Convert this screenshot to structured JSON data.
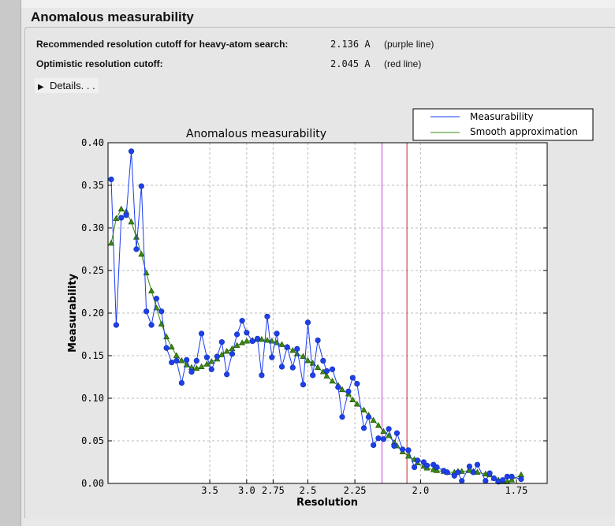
{
  "section_title": "Anomalous measurability",
  "rows": [
    {
      "label": "Recommended resolution cutoff for heavy-atom search:",
      "value": "2.136 A",
      "note": "(purple line)"
    },
    {
      "label": "Optimistic resolution cutoff:",
      "value": "2.045 A",
      "note": "(red line)"
    }
  ],
  "details_label": "Details. . .",
  "colors": {
    "measurability": "#1a3cf0",
    "smooth": "#3a8a10",
    "purple_line": "#d040d0",
    "red_line": "#c03020"
  },
  "chart_data": {
    "type": "line",
    "title": "Anomalous measurability",
    "xlabel": "Resolution",
    "ylabel": "Measurability",
    "x_scale": "1/d^2",
    "x_ticks": [
      "3.5",
      "3.0",
      "2.75",
      "2.5",
      "2.25",
      "2.0",
      "1.75"
    ],
    "y_ticks": [
      "0.00",
      "0.05",
      "0.10",
      "0.15",
      "0.20",
      "0.25",
      "0.30",
      "0.35",
      "0.40"
    ],
    "ylim": [
      0,
      0.4
    ],
    "xlim_resolution": [
      null,
      1.69
    ],
    "grid": true,
    "legend_placement": "top-right",
    "vlines": [
      {
        "x": 2.136,
        "color": "purple"
      },
      {
        "x": 2.045,
        "color": "red"
      }
    ],
    "x": [
      18.57,
      12.02,
      9.56,
      8.18,
      7.26,
      6.59,
      6.08,
      5.68,
      5.34,
      5.06,
      4.82,
      4.61,
      4.42,
      4.26,
      4.11,
      3.98,
      3.86,
      3.75,
      3.65,
      3.55,
      3.47,
      3.38,
      3.31,
      3.24,
      3.17,
      3.11,
      3.05,
      3.0,
      2.94,
      2.89,
      2.85,
      2.8,
      2.76,
      2.72,
      2.68,
      2.64,
      2.6,
      2.57,
      2.53,
      2.5,
      2.47,
      2.44,
      2.41,
      2.39,
      2.36,
      2.33,
      2.31,
      2.28,
      2.26,
      2.24,
      2.21,
      2.19,
      2.17,
      2.15,
      2.13,
      2.11,
      2.09,
      2.08,
      2.06,
      2.04,
      2.02,
      2.01,
      1.99,
      1.98,
      1.96,
      1.95,
      1.93,
      1.92,
      1.9,
      1.89,
      1.88,
      1.86,
      1.85,
      1.84,
      1.82,
      1.81,
      1.8,
      1.79,
      1.78,
      1.77,
      1.76,
      1.74
    ],
    "series": [
      {
        "name": "Measurability",
        "marker": "circle",
        "values": [
          0.357,
          0.186,
          0.312,
          0.315,
          0.39,
          0.275,
          0.349,
          0.202,
          0.186,
          0.217,
          0.202,
          0.159,
          0.142,
          0.144,
          0.118,
          0.145,
          0.131,
          0.144,
          0.176,
          0.148,
          0.134,
          0.149,
          0.166,
          0.128,
          0.152,
          0.175,
          0.191,
          0.177,
          0.167,
          0.17,
          0.127,
          0.196,
          0.148,
          0.176,
          0.137,
          0.16,
          0.136,
          0.158,
          0.116,
          0.189,
          0.127,
          0.168,
          0.144,
          0.132,
          0.134,
          0.113,
          0.078,
          0.108,
          0.124,
          0.117,
          0.065,
          0.078,
          0.045,
          0.053,
          0.052,
          0.064,
          0.044,
          0.059,
          0.04,
          0.039,
          0.019,
          0.027,
          0.025,
          0.021,
          0.022,
          0.019,
          0.015,
          0.013,
          0.009,
          0.013,
          0.003,
          0.02,
          0.013,
          0.022,
          0.003,
          0.012,
          0.006,
          0.002,
          0.004,
          0.008,
          0.008,
          0.005
        ]
      },
      {
        "name": "Smooth approximation",
        "marker": "triangle",
        "values": [
          0.282,
          0.311,
          0.322,
          0.319,
          0.307,
          0.289,
          0.269,
          0.247,
          0.226,
          0.206,
          0.187,
          0.172,
          0.16,
          0.15,
          0.144,
          0.139,
          0.136,
          0.135,
          0.137,
          0.14,
          0.143,
          0.146,
          0.151,
          0.155,
          0.158,
          0.162,
          0.165,
          0.167,
          0.168,
          0.169,
          0.169,
          0.168,
          0.167,
          0.165,
          0.163,
          0.16,
          0.156,
          0.152,
          0.149,
          0.144,
          0.141,
          0.136,
          0.131,
          0.126,
          0.12,
          0.115,
          0.11,
          0.105,
          0.098,
          0.093,
          0.086,
          0.08,
          0.074,
          0.068,
          0.061,
          0.056,
          0.048,
          0.044,
          0.037,
          0.032,
          0.028,
          0.024,
          0.02,
          0.018,
          0.016,
          0.015,
          0.014,
          0.013,
          0.013,
          0.014,
          0.014,
          0.015,
          0.014,
          0.013,
          0.011,
          0.01,
          0.006,
          0.004,
          0.002,
          0.002,
          0.004,
          0.01
        ]
      }
    ]
  }
}
